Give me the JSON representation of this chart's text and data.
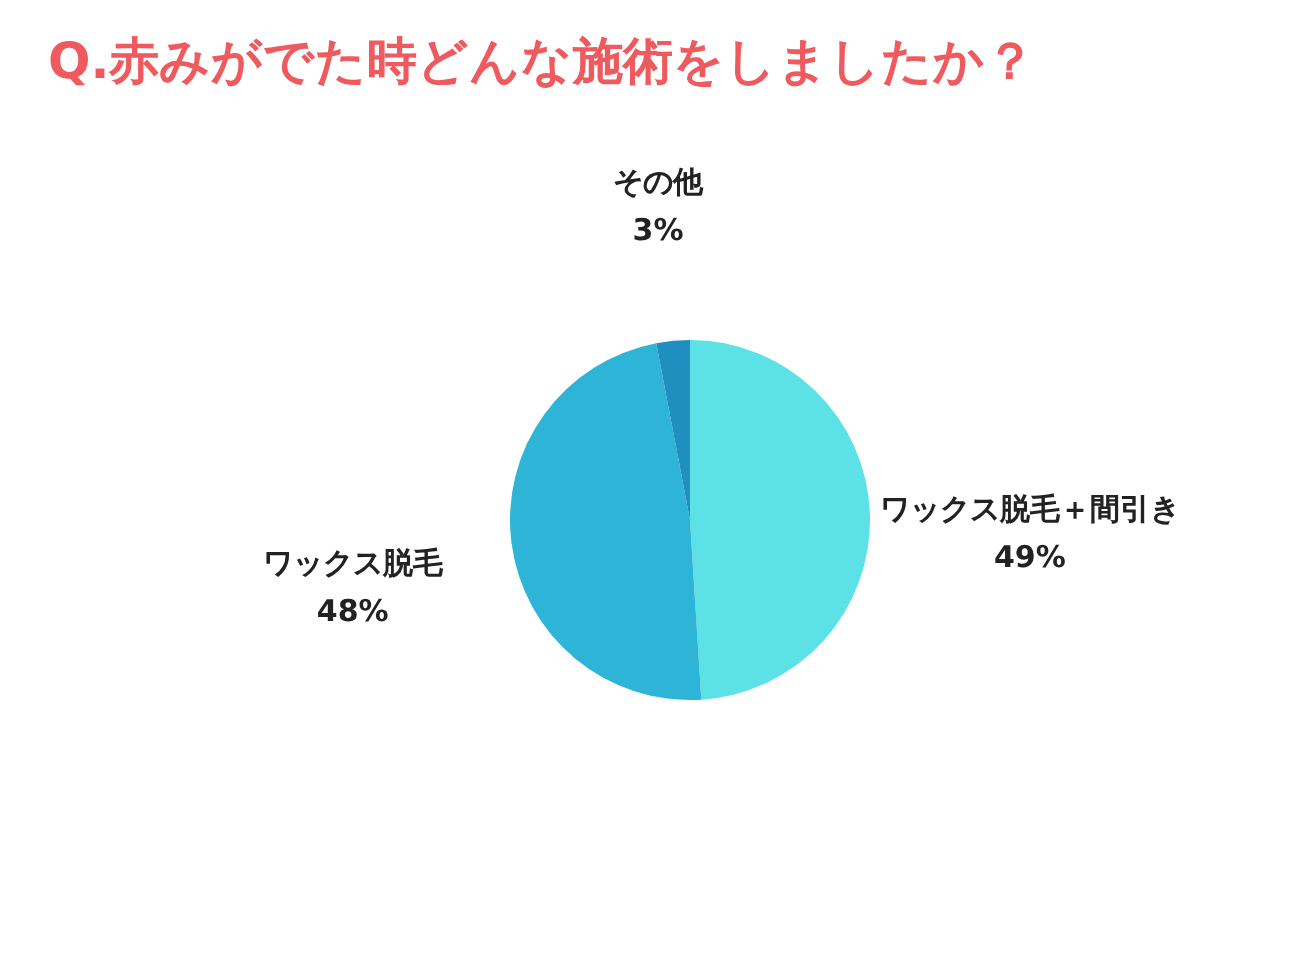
{
  "chart_data": {
    "type": "pie",
    "title": "Q.赤みがでた時どんな施術をしましたか？",
    "categories": [
      "ワックス脱毛＋間引き",
      "ワックス脱毛",
      "その他"
    ],
    "values": [
      49,
      48,
      3
    ],
    "colors": [
      "#5ce1e6",
      "#2eb4d6",
      "#1f8fc0"
    ],
    "value_labels": [
      "49%",
      "48%",
      "3%"
    ],
    "legend": false
  }
}
